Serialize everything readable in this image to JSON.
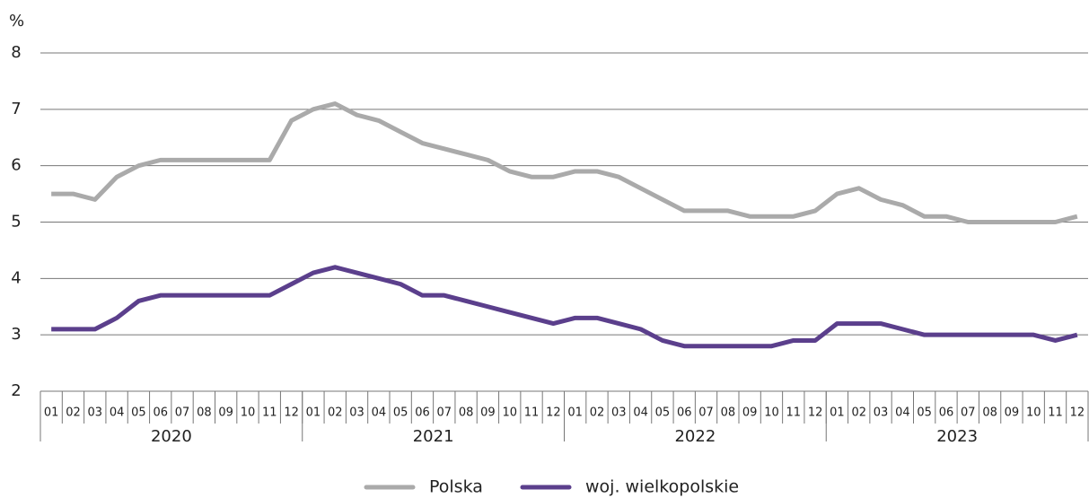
{
  "chart_data": {
    "type": "line",
    "y_unit": "%",
    "categories": [
      "01",
      "02",
      "03",
      "04",
      "05",
      "06",
      "07",
      "08",
      "09",
      "10",
      "11",
      "12",
      "01",
      "02",
      "03",
      "04",
      "05",
      "06",
      "07",
      "08",
      "09",
      "10",
      "11",
      "12",
      "01",
      "02",
      "03",
      "04",
      "05",
      "06",
      "07",
      "08",
      "09",
      "10",
      "11",
      "12",
      "01",
      "02",
      "03",
      "04",
      "05",
      "06",
      "07",
      "08",
      "09",
      "10",
      "11",
      "12"
    ],
    "year_groups": [
      "2020",
      "2021",
      "2022",
      "2023"
    ],
    "ylim": [
      2,
      8
    ],
    "yticks": [
      2,
      3,
      4,
      5,
      6,
      7,
      8
    ],
    "grid": true,
    "legend": "bottom",
    "series": [
      {
        "name": "Polska",
        "color": "#aaaaaa",
        "values": [
          5.5,
          5.5,
          5.4,
          5.8,
          6.0,
          6.1,
          6.1,
          6.1,
          6.1,
          6.1,
          6.1,
          6.8,
          7.0,
          7.1,
          6.9,
          6.8,
          6.6,
          6.4,
          6.3,
          6.2,
          6.1,
          5.9,
          5.8,
          5.8,
          5.9,
          5.9,
          5.8,
          5.6,
          5.4,
          5.2,
          5.2,
          5.2,
          5.1,
          5.1,
          5.1,
          5.2,
          5.5,
          5.6,
          5.4,
          5.3,
          5.1,
          5.1,
          5.0,
          5.0,
          5.0,
          5.0,
          5.0,
          5.1
        ]
      },
      {
        "name": "woj. wielkopolskie",
        "color": "#5b3f8c",
        "values": [
          3.1,
          3.1,
          3.1,
          3.3,
          3.6,
          3.7,
          3.7,
          3.7,
          3.7,
          3.7,
          3.7,
          3.9,
          4.1,
          4.2,
          4.1,
          4.0,
          3.9,
          3.7,
          3.7,
          3.6,
          3.5,
          3.4,
          3.3,
          3.2,
          3.3,
          3.3,
          3.2,
          3.1,
          2.9,
          2.8,
          2.8,
          2.8,
          2.8,
          2.8,
          2.9,
          2.9,
          3.2,
          3.2,
          3.2,
          3.1,
          3.0,
          3.0,
          3.0,
          3.0,
          3.0,
          3.0,
          2.9,
          3.0
        ]
      }
    ]
  }
}
